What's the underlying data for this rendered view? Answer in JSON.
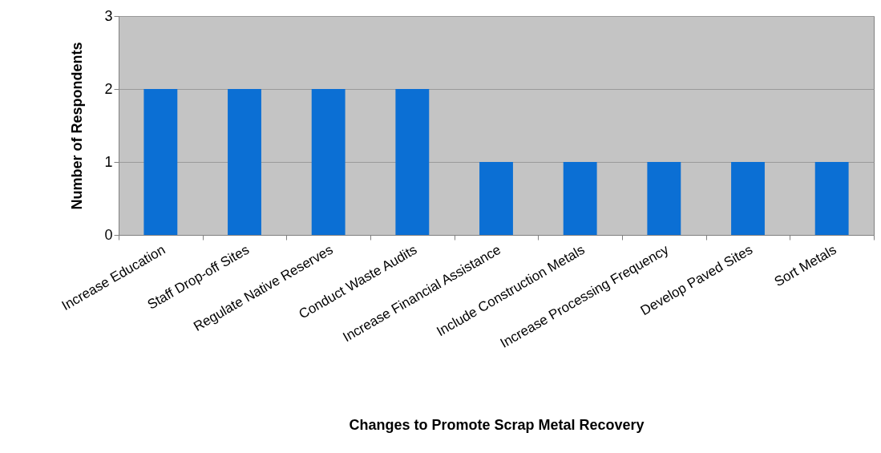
{
  "chart_data": {
    "type": "bar",
    "xlabel": "Changes to Promote Scrap Metal Recovery",
    "ylabel": "Number of Respondents",
    "categories": [
      "Increase Education",
      "Staff Drop-off Sites",
      "Regulate Native Reserves",
      "Conduct Waste Audits",
      "Increase Financial Assistance",
      "Include Construction Metals",
      "Increase Processing Frequency",
      "Develop Paved Sites",
      "Sort Metals"
    ],
    "values": [
      2,
      2,
      2,
      2,
      1,
      1,
      1,
      1,
      1
    ],
    "color": "#0b6fd4",
    "ylim": [
      0,
      3
    ],
    "yticks": [
      0,
      1,
      2,
      3
    ],
    "grid": "y"
  }
}
